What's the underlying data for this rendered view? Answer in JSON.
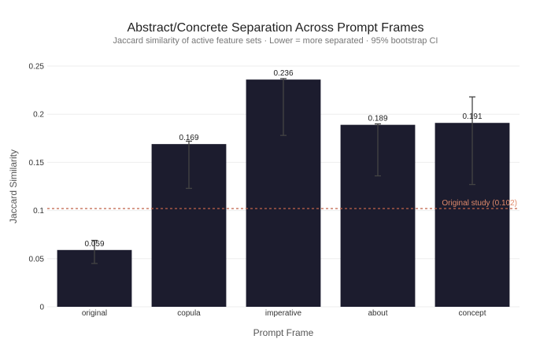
{
  "chart_data": {
    "type": "bar",
    "title": "Abstract/Concrete Separation Across Prompt Frames",
    "subtitle": "Jaccard similarity of active feature sets · Lower = more separated · 95% bootstrap CI",
    "xlabel": "Prompt Frame",
    "ylabel": "Jaccard Similarity",
    "categories": [
      "original",
      "copula",
      "imperative",
      "about",
      "concept"
    ],
    "values": [
      0.059,
      0.169,
      0.236,
      0.189,
      0.191
    ],
    "value_labels": [
      "0.059",
      "0.169",
      "0.236",
      "0.189",
      "0.191"
    ],
    "ci_low": [
      0.045,
      0.123,
      0.178,
      0.136,
      0.127
    ],
    "ci_high": [
      0.069,
      0.172,
      0.237,
      0.19,
      0.218
    ],
    "ylim": [
      0,
      0.25
    ],
    "yticks": [
      0,
      0.05,
      0.1,
      0.15,
      0.2,
      0.25
    ],
    "ytick_labels": [
      "0",
      "0.05",
      "0.1",
      "0.15",
      "0.2",
      "0.25"
    ],
    "reference_line": {
      "value": 0.102,
      "label": "Original study (0.102)"
    },
    "grid": true,
    "colors": {
      "bar": "#1c1c2e",
      "error_bar": "#444444",
      "reference": "#c0634a",
      "grid": "#eeeeee"
    }
  }
}
